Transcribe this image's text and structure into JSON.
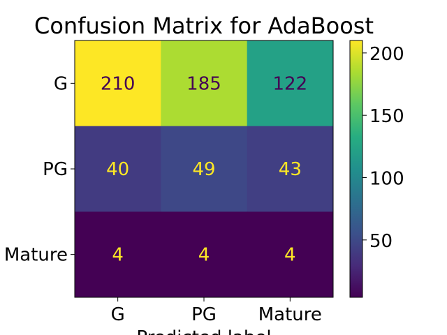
{
  "chart_data": {
    "type": "heatmap",
    "title": "Confusion Matrix for AdaBoost",
    "xlabel": "Predicted label",
    "ylabel": "",
    "x_categories": [
      "G",
      "PG",
      "Mature"
    ],
    "y_categories": [
      "G",
      "PG",
      "Mature"
    ],
    "values": [
      [
        210,
        185,
        122
      ],
      [
        40,
        49,
        43
      ],
      [
        4,
        4,
        4
      ]
    ],
    "colorscale": "viridis",
    "vmin": 4,
    "vmax": 210,
    "colorbar_ticks": [
      50,
      100,
      150,
      200
    ],
    "grid": false
  }
}
